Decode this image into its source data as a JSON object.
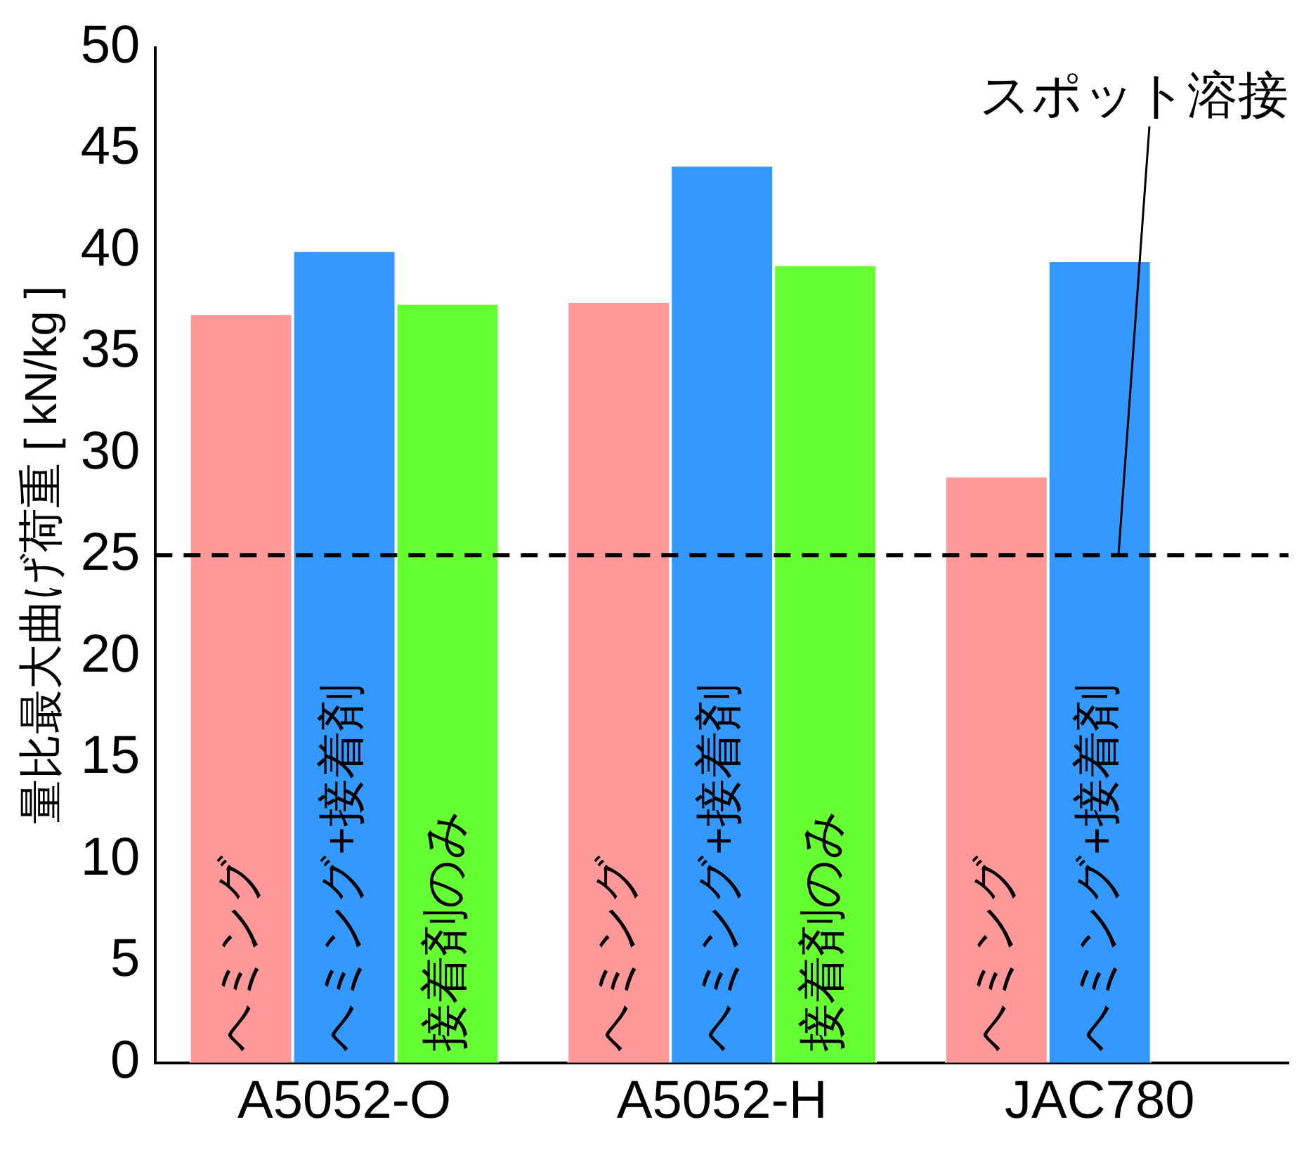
{
  "chart_data": {
    "type": "bar",
    "ylabel": "量比最大曲げ荷重 [ kN/kg ]",
    "categories": [
      "A5052-O",
      "A5052-H",
      "JAC780"
    ],
    "series": [
      {
        "name": "ヘミング",
        "color": "#ff9999",
        "values": [
          36.9,
          37.5,
          28.9
        ]
      },
      {
        "name": "ヘミング+接着剤",
        "color": "#3399ff",
        "values": [
          40,
          44.2,
          39.5
        ]
      },
      {
        "name": "接着剤のみ",
        "color": "#66ff33",
        "values": [
          37.4,
          39.3,
          null
        ]
      }
    ],
    "ylim": [
      0,
      50
    ],
    "yticks": [
      0,
      5,
      10,
      15,
      20,
      25,
      30,
      35,
      40,
      45,
      50
    ],
    "grid": false,
    "legend": false,
    "ref_lines": [
      {
        "axis": "y",
        "value": 25,
        "label": "スポット溶接",
        "line_style": "dashed",
        "color": "#000000"
      }
    ]
  }
}
